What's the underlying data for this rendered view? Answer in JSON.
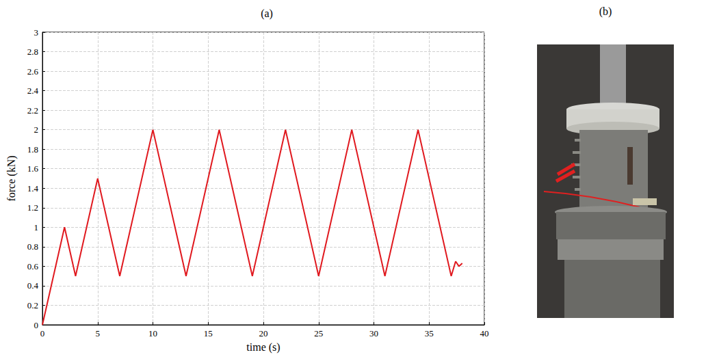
{
  "chart_data": {
    "type": "line",
    "title": "(a)",
    "x_label": "time (s)",
    "y_label": "force (kN)",
    "x": [
      0,
      2,
      3,
      5,
      7,
      10,
      13,
      16,
      19,
      22,
      25,
      28,
      31,
      34,
      37,
      37.4,
      37.7,
      38
    ],
    "values": [
      0,
      1,
      0.5,
      1.5,
      0.5,
      2,
      0.5,
      2,
      0.5,
      2,
      0.5,
      2,
      0.5,
      2,
      0.5,
      0.65,
      0.6,
      0.63
    ],
    "color": "#e0191f",
    "xlim": [
      0,
      40
    ],
    "xticks": [
      0,
      5,
      10,
      15,
      20,
      25,
      30,
      35,
      40
    ],
    "ylim": [
      0,
      3
    ],
    "yticks": [
      0,
      0.2,
      0.4,
      0.6,
      0.8,
      1,
      1.2,
      1.4,
      1.6,
      1.8,
      2,
      2.2,
      2.4,
      2.6,
      2.8,
      3
    ],
    "grid": true
  },
  "photo_panel": {
    "title": "(b)"
  }
}
